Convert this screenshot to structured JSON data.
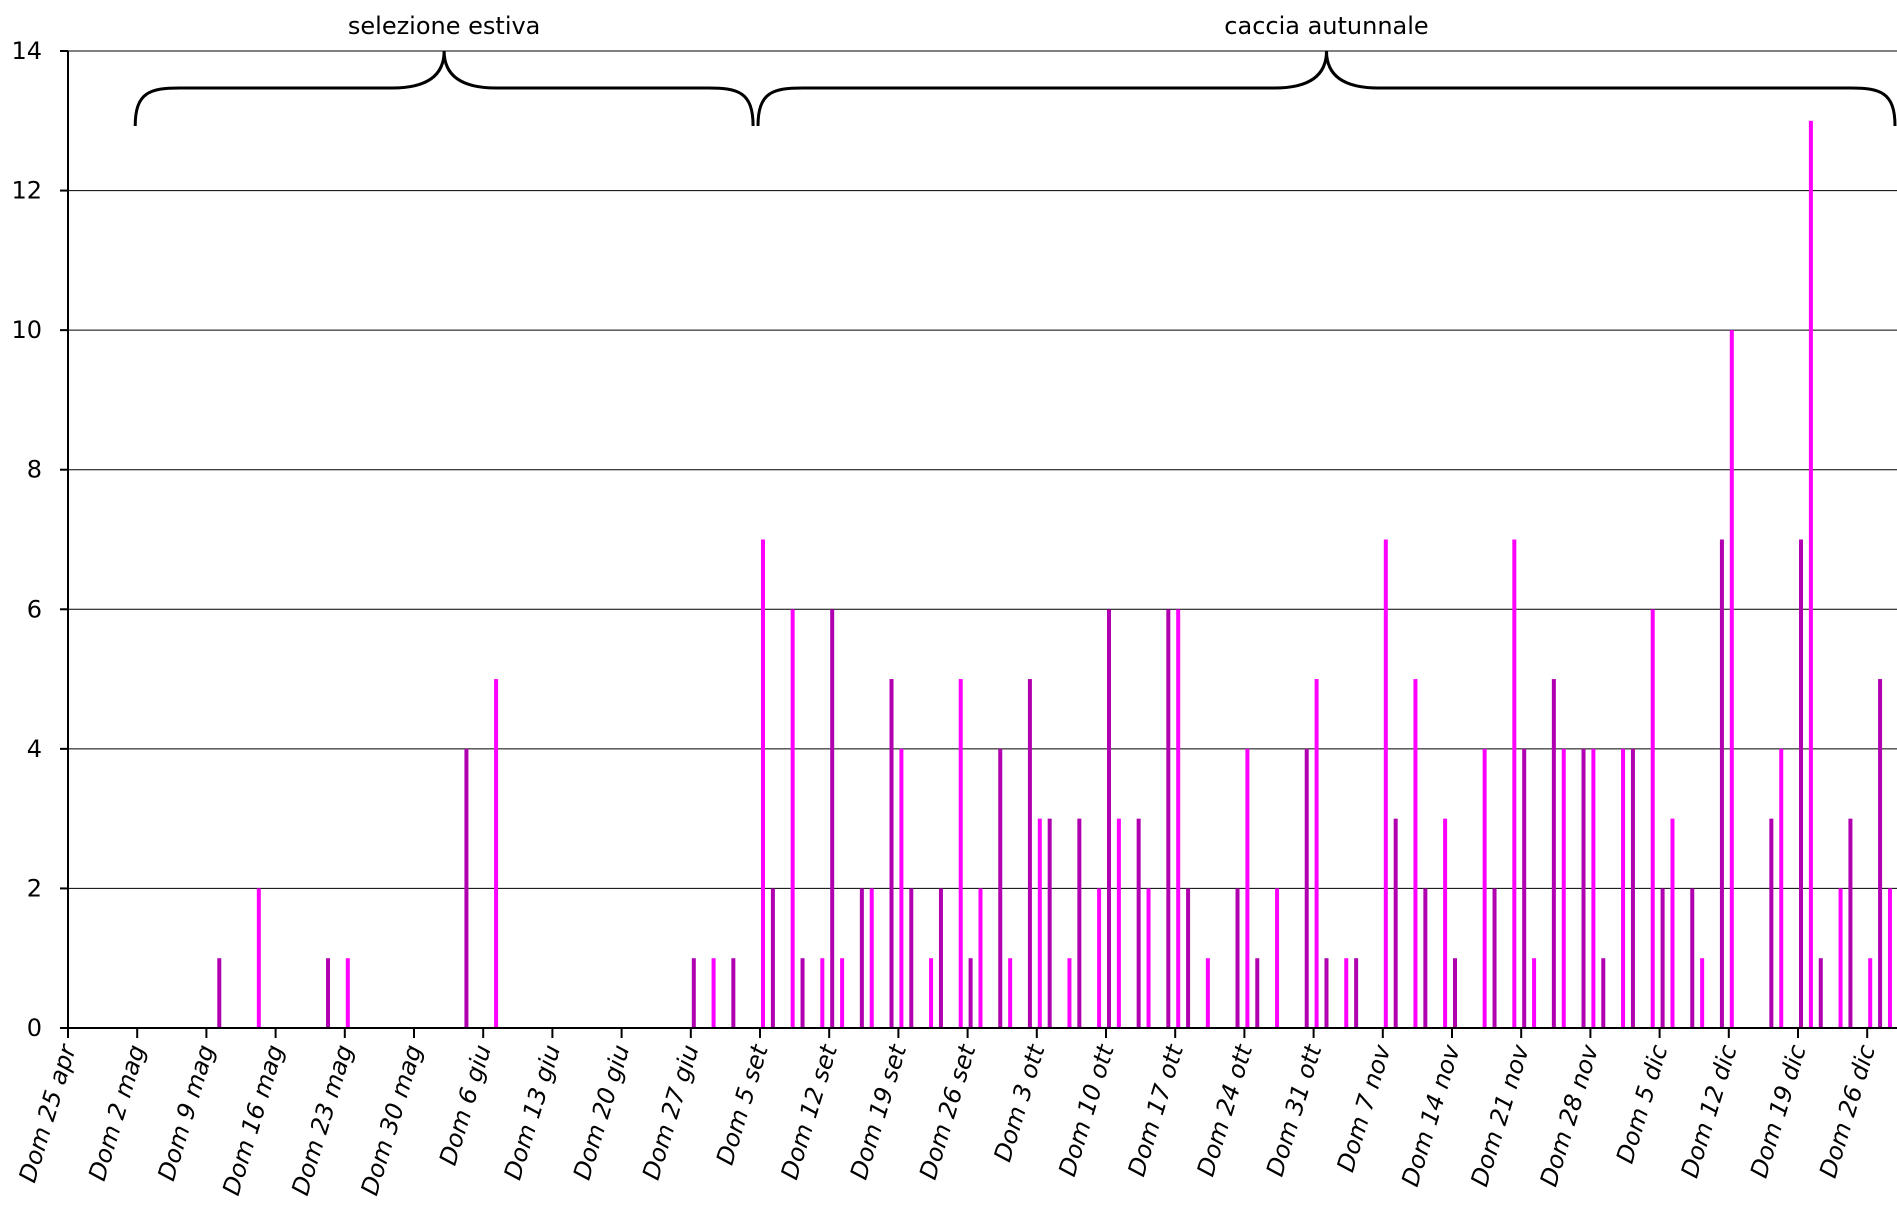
{
  "chart_data": {
    "type": "bar",
    "title": "",
    "xlabel": "",
    "ylabel": "",
    "ylim": [
      0,
      14
    ],
    "yticks": [
      0,
      2,
      4,
      6,
      8,
      10,
      12,
      14
    ],
    "grid": true,
    "legend": "none",
    "colors": {
      "bar_light": "#ff00ff",
      "bar_dark": "#b000b0",
      "grid": "#000000",
      "axis": "#000000"
    },
    "categories": [
      "Dom 25 apr",
      "Dom 2 mag",
      "Dom 9 mag",
      "Dom 16 mag",
      "Dom 23 mag",
      "Dom 30 mag",
      "Dom 6 giu",
      "Dom 13 giu",
      "Dom 20 giu",
      "Dom 27 giu",
      "Dom 5 set",
      "Dom 12 set",
      "Dom 19 set",
      "Dom 26 set",
      "Dom 3 ott",
      "Dom 10 ott",
      "Dom 17 ott",
      "Dom 24 ott",
      "Dom 31 ott",
      "Dom 7 nov",
      "Dom 14 nov",
      "Dom 21 nov",
      "Dom 28 nov",
      "Dom 5 dic",
      "Dom 12 dic",
      "Dom 19 dic",
      "Dom 26 dic"
    ],
    "periods": [
      {
        "label": "selezione estiva",
        "from_week": 1,
        "to_week": 9.9
      },
      {
        "label": "caccia autunnale",
        "from_week": 10,
        "to_week": 26.8
      }
    ],
    "bars": [
      {
        "week": 2,
        "day": 1,
        "value": 1
      },
      {
        "week": 2,
        "day": 5,
        "value": 2
      },
      {
        "week": 3,
        "day": 5,
        "value": 1
      },
      {
        "week": 3,
        "day": 7,
        "value": 1
      },
      {
        "week": 5,
        "day": 5,
        "value": 4
      },
      {
        "week": 6,
        "day": 1,
        "value": 5
      },
      {
        "week": 9,
        "day": 0,
        "value": 1
      },
      {
        "week": 9,
        "day": 2,
        "value": 1
      },
      {
        "week": 9,
        "day": 4,
        "value": 1
      },
      {
        "week": 10,
        "day": 0,
        "value": 7
      },
      {
        "week": 10,
        "day": 1,
        "value": 2
      },
      {
        "week": 10,
        "day": 3,
        "value": 6
      },
      {
        "week": 10,
        "day": 4,
        "value": 1
      },
      {
        "week": 10,
        "day": 6,
        "value": 1
      },
      {
        "week": 11,
        "day": 0,
        "value": 6
      },
      {
        "week": 11,
        "day": 1,
        "value": 1
      },
      {
        "week": 11,
        "day": 3,
        "value": 2
      },
      {
        "week": 11,
        "day": 4,
        "value": 2
      },
      {
        "week": 11,
        "day": 6,
        "value": 5
      },
      {
        "week": 12,
        "day": 0,
        "value": 4
      },
      {
        "week": 12,
        "day": 1,
        "value": 2
      },
      {
        "week": 12,
        "day": 3,
        "value": 1
      },
      {
        "week": 12,
        "day": 4,
        "value": 2
      },
      {
        "week": 12,
        "day": 6,
        "value": 5
      },
      {
        "week": 13,
        "day": 0,
        "value": 1
      },
      {
        "week": 13,
        "day": 1,
        "value": 2
      },
      {
        "week": 13,
        "day": 3,
        "value": 4
      },
      {
        "week": 13,
        "day": 4,
        "value": 1
      },
      {
        "week": 13,
        "day": 6,
        "value": 5
      },
      {
        "week": 14,
        "day": 0,
        "value": 3
      },
      {
        "week": 14,
        "day": 1,
        "value": 3
      },
      {
        "week": 14,
        "day": 3,
        "value": 1
      },
      {
        "week": 14,
        "day": 4,
        "value": 3
      },
      {
        "week": 14,
        "day": 6,
        "value": 2
      },
      {
        "week": 15,
        "day": 0,
        "value": 6
      },
      {
        "week": 15,
        "day": 1,
        "value": 3
      },
      {
        "week": 15,
        "day": 3,
        "value": 3
      },
      {
        "week": 15,
        "day": 4,
        "value": 2
      },
      {
        "week": 15,
        "day": 6,
        "value": 6
      },
      {
        "week": 16,
        "day": 0,
        "value": 6
      },
      {
        "week": 16,
        "day": 1,
        "value": 2
      },
      {
        "week": 16,
        "day": 3,
        "value": 1
      },
      {
        "week": 16,
        "day": 6,
        "value": 2
      },
      {
        "week": 17,
        "day": 0,
        "value": 4
      },
      {
        "week": 17,
        "day": 1,
        "value": 1
      },
      {
        "week": 17,
        "day": 3,
        "value": 2
      },
      {
        "week": 17,
        "day": 6,
        "value": 4
      },
      {
        "week": 18,
        "day": 0,
        "value": 5
      },
      {
        "week": 18,
        "day": 1,
        "value": 1
      },
      {
        "week": 18,
        "day": 3,
        "value": 1
      },
      {
        "week": 18,
        "day": 4,
        "value": 1
      },
      {
        "week": 19,
        "day": 0,
        "value": 7
      },
      {
        "week": 19,
        "day": 1,
        "value": 3
      },
      {
        "week": 19,
        "day": 3,
        "value": 5
      },
      {
        "week": 19,
        "day": 4,
        "value": 2
      },
      {
        "week": 19,
        "day": 6,
        "value": 3
      },
      {
        "week": 20,
        "day": 0,
        "value": 1
      },
      {
        "week": 20,
        "day": 3,
        "value": 4
      },
      {
        "week": 20,
        "day": 4,
        "value": 2
      },
      {
        "week": 20,
        "day": 6,
        "value": 7
      },
      {
        "week": 21,
        "day": 0,
        "value": 4
      },
      {
        "week": 21,
        "day": 1,
        "value": 1
      },
      {
        "week": 21,
        "day": 3,
        "value": 5
      },
      {
        "week": 21,
        "day": 4,
        "value": 4
      },
      {
        "week": 21,
        "day": 6,
        "value": 4
      },
      {
        "week": 22,
        "day": 0,
        "value": 4
      },
      {
        "week": 22,
        "day": 1,
        "value": 1
      },
      {
        "week": 22,
        "day": 3,
        "value": 4
      },
      {
        "week": 22,
        "day": 4,
        "value": 4
      },
      {
        "week": 22,
        "day": 6,
        "value": 6
      },
      {
        "week": 23,
        "day": 0,
        "value": 2
      },
      {
        "week": 23,
        "day": 1,
        "value": 3
      },
      {
        "week": 23,
        "day": 3,
        "value": 2
      },
      {
        "week": 23,
        "day": 4,
        "value": 1
      },
      {
        "week": 23,
        "day": 6,
        "value": 7
      },
      {
        "week": 24,
        "day": 0,
        "value": 10
      },
      {
        "week": 24,
        "day": 4,
        "value": 3
      },
      {
        "week": 24,
        "day": 5,
        "value": 4
      },
      {
        "week": 25,
        "day": 0,
        "value": 7
      },
      {
        "week": 25,
        "day": 1,
        "value": 13
      },
      {
        "week": 25,
        "day": 2,
        "value": 1
      },
      {
        "week": 25,
        "day": 4,
        "value": 2
      },
      {
        "week": 25,
        "day": 5,
        "value": 3
      },
      {
        "week": 26,
        "day": 0,
        "value": 1
      },
      {
        "week": 26,
        "day": 1,
        "value": 5
      },
      {
        "week": 26,
        "day": 2,
        "value": 2
      },
      {
        "week": 26,
        "day": 6,
        "value": 7
      }
    ]
  }
}
